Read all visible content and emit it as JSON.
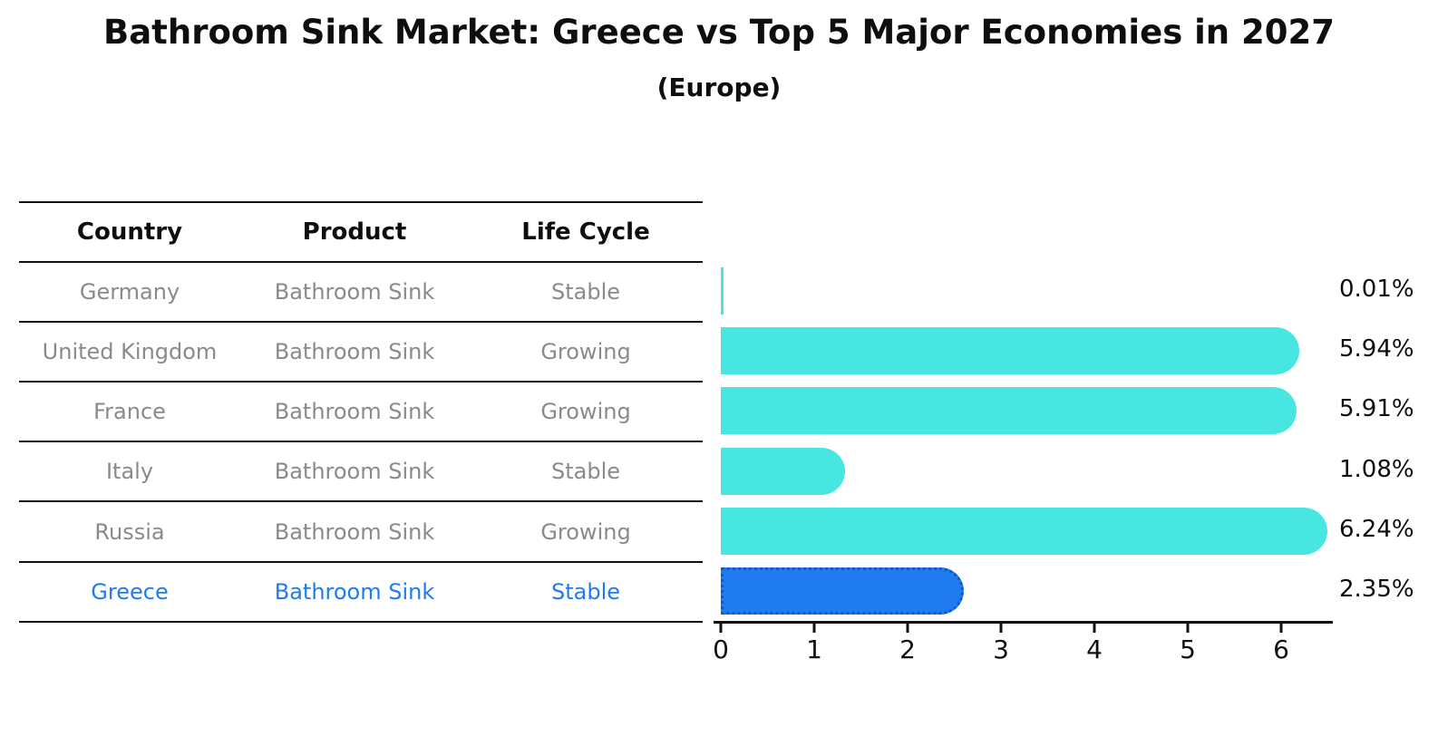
{
  "title": "Bathroom Sink Market: Greece vs Top 5 Major Economies in 2027",
  "subtitle": "(Europe)",
  "table": {
    "headers": [
      "Country",
      "Product",
      "Life Cycle"
    ]
  },
  "chart_data": {
    "type": "bar",
    "orientation": "horizontal",
    "title": "Bathroom Sink Market: Greece vs Top 5 Major Economies in 2027",
    "subtitle": "(Europe)",
    "categories": [
      "Germany",
      "United Kingdom",
      "France",
      "Italy",
      "Russia",
      "Greece"
    ],
    "values": [
      0.01,
      5.94,
      5.91,
      1.08,
      6.24,
      2.35
    ],
    "value_labels": [
      "0.01%",
      "5.94%",
      "5.91%",
      "1.08%",
      "6.24%",
      "2.35%"
    ],
    "x_ticks": [
      "0",
      "1",
      "2",
      "3",
      "4",
      "5",
      "6"
    ],
    "xlim": [
      0,
      6.6
    ],
    "grid": false,
    "legend": false,
    "highlight_category": "Greece",
    "rows": [
      {
        "country": "Germany",
        "product": "Bathroom Sink",
        "life_cycle": "Stable",
        "share": "0.01%",
        "highlight": false
      },
      {
        "country": "United Kingdom",
        "product": "Bathroom Sink",
        "life_cycle": "Growing",
        "share": "5.94%",
        "highlight": false
      },
      {
        "country": "France",
        "product": "Bathroom Sink",
        "life_cycle": "Growing",
        "share": "5.91%",
        "highlight": false
      },
      {
        "country": "Italy",
        "product": "Bathroom Sink",
        "life_cycle": "Stable",
        "share": "1.08%",
        "highlight": false
      },
      {
        "country": "Russia",
        "product": "Bathroom Sink",
        "life_cycle": "Growing",
        "share": "6.24%",
        "highlight": false
      },
      {
        "country": "Greece",
        "product": "Bathroom Sink",
        "life_cycle": "Stable",
        "share": "2.35%",
        "highlight": true
      }
    ]
  },
  "colors": {
    "bar_cyan": "#47E6E1",
    "highlight_blue": "#1F7BEF",
    "highlight_border": "#1359C4",
    "table_text_gray": "#8a8a8a",
    "text_black": "#0e0e0e"
  }
}
